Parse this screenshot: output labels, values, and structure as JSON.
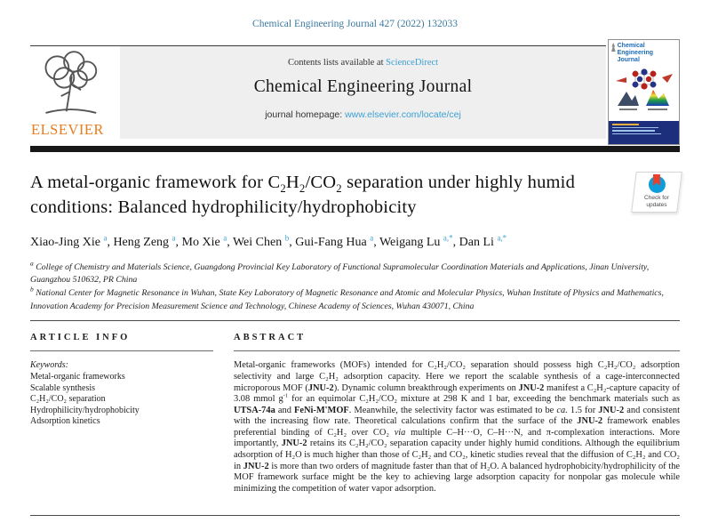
{
  "colors": {
    "link_blue": "#3ba0d4",
    "citation_blue": "#3c7aa0",
    "elsevier_orange": "#e87d1e",
    "cover_blue": "#1b6cb5",
    "crossmark_blue": "#0d9ddb",
    "crossmark_red": "#e8402a",
    "bar_black": "#181818"
  },
  "page": {
    "citation": "Chemical Engineering Journal 427 (2022) 132033"
  },
  "header": {
    "contents_prefix": "Contents lists available at ",
    "contents_link": "ScienceDirect",
    "journal_title": "Chemical Engineering Journal",
    "homepage_prefix": "journal homepage: ",
    "homepage_link": "www.elsevier.com/locate/cej",
    "publisher": "ELSEVIER",
    "cover": {
      "title": "Chemical Engineering Journal"
    }
  },
  "badge": {
    "line1": "Check for",
    "line2": "updates"
  },
  "article": {
    "title_runs": [
      {
        "t": "A metal-organic framework for C"
      },
      {
        "t": "2",
        "sub": true
      },
      {
        "t": "H"
      },
      {
        "t": "2",
        "sub": true
      },
      {
        "t": "/CO"
      },
      {
        "t": "2",
        "sub": true
      },
      {
        "t": " separation under highly humid conditions: Balanced hydrophilicity/hydrophobicity"
      }
    ],
    "authors_runs": [
      {
        "t": "Xiao-Jing Xie "
      },
      {
        "t": "a",
        "sup": true
      },
      {
        "t": ", Heng Zeng "
      },
      {
        "t": "a",
        "sup": true
      },
      {
        "t": ", Mo Xie "
      },
      {
        "t": "a",
        "sup": true
      },
      {
        "t": ", Wei Chen "
      },
      {
        "t": "b",
        "sup": true
      },
      {
        "t": ", Gui-Fang Hua "
      },
      {
        "t": "a",
        "sup": true
      },
      {
        "t": ", Weigang Lu "
      },
      {
        "t": "a,*",
        "sup": true
      },
      {
        "t": ", Dan Li "
      },
      {
        "t": "a,*",
        "sup": true
      }
    ],
    "affiliations": [
      {
        "marker": "a",
        "text": " College of Chemistry and Materials Science, Guangdong Provincial Key Laboratory of Functional Supramolecular Coordination Materials and Applications, Jinan University, Guangzhou 510632, PR China"
      },
      {
        "marker": "b",
        "text": " National Center for Magnetic Resonance in Wuhan, State Key Laboratory of Magnetic Resonance and Atomic and Molecular Physics, Wuhan Institute of Physics and Mathematics, Innovation Academy for Precision Measurement Science and Technology, Chinese Academy of Sciences, Wuhan 430071, China"
      }
    ]
  },
  "info": {
    "heading": "ARTICLE INFO",
    "keywords_label": "Keywords:",
    "keywords": [
      "Metal-organic frameworks",
      "Scalable synthesis",
      "C₂H₂/CO₂ separation",
      "Hydrophilicity/hydrophobicity",
      "Adsorption kinetics"
    ]
  },
  "abstract": {
    "heading": "ABSTRACT",
    "runs": [
      {
        "t": "Metal-organic frameworks (MOFs) intended for C₂H₂/CO₂ separation should possess high C₂H₂/CO₂ adsorption selectivity and large C₂H₂ adsorption capacity. Here we report the scalable synthesis of a cage-interconnected microporous MOF ("
      },
      {
        "t": "JNU-2",
        "b": true
      },
      {
        "t": "). Dynamic column breakthrough experiments on "
      },
      {
        "t": "JNU-2",
        "b": true
      },
      {
        "t": " manifest a C₂H₂-capture capacity of 3.08 mmol g"
      },
      {
        "t": "-1",
        "sup": true
      },
      {
        "t": " for an equimolar C₂H₂/CO₂ mixture at 298 K and 1 bar, exceeding the benchmark materials such as "
      },
      {
        "t": "UTSA-74a",
        "b": true
      },
      {
        "t": " and "
      },
      {
        "t": "FeNi-M'MOF",
        "b": true
      },
      {
        "t": ". Meanwhile, the selectivity factor was estimated to be "
      },
      {
        "t": "ca.",
        "i": true
      },
      {
        "t": " 1.5 for "
      },
      {
        "t": "JNU-2",
        "b": true
      },
      {
        "t": " and consistent with the increasing flow rate. Theoretical calculations confirm that the surface of the "
      },
      {
        "t": "JNU-2",
        "b": true
      },
      {
        "t": " framework enables preferential binding of C₂H₂ over CO₂ "
      },
      {
        "t": "via",
        "i": true
      },
      {
        "t": " multiple C–H···O, C–H···N, and π-complexation interactions. More importantly, "
      },
      {
        "t": "JNU-2",
        "b": true
      },
      {
        "t": " retains its C₂H₂/CO₂ separation capacity under highly humid conditions. Although the equilibrium adsorption of H₂O is much higher than those of C₂H₂ and CO₂, kinetic studies reveal that the diffusion of C₂H₂ and CO₂ in "
      },
      {
        "t": "JNU-2",
        "b": true
      },
      {
        "t": " is more than two orders of magnitude faster than that of H₂O. A balanced hydrophobicity/hydrophilicity of the MOF framework surface might be the key to achieving large adsorption capacity for nonpolar gas molecule while minimizing the competition of water vapor adsorption."
      }
    ]
  }
}
